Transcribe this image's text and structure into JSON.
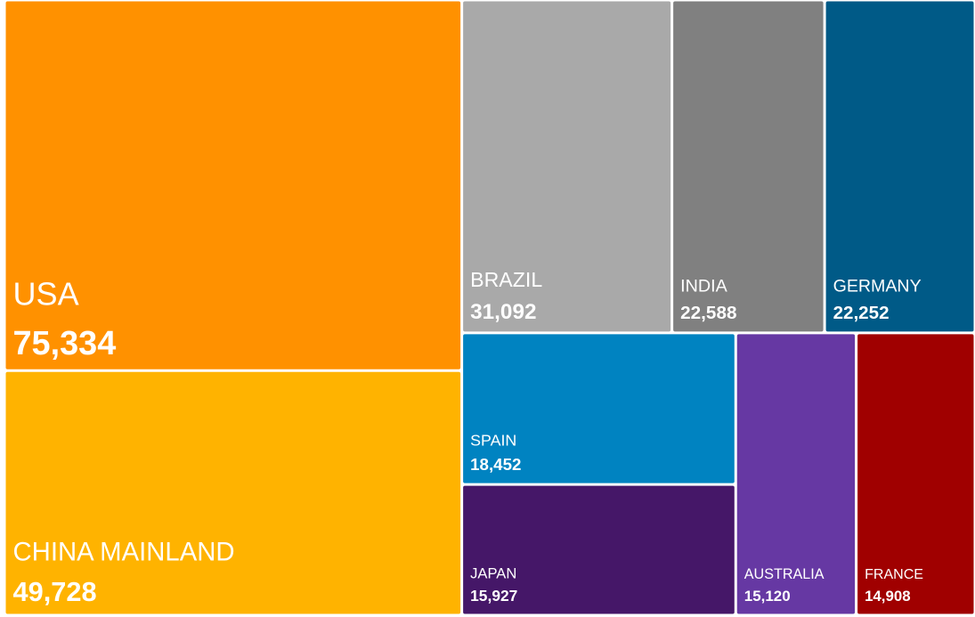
{
  "chart_data": {
    "type": "treemap",
    "categories": [
      "USA",
      "CHINA MAINLAND",
      "BRAZIL",
      "INDIA",
      "GERMANY",
      "SPAIN",
      "JAPAN",
      "AUSTRALIA",
      "FRANCE"
    ],
    "values": [
      75334,
      49728,
      31092,
      22588,
      22252,
      18452,
      15927,
      15120,
      14908
    ],
    "value_labels": [
      "75,334",
      "49,728",
      "31,092",
      "22,588",
      "22,252",
      "18,452",
      "15,927",
      "15,120",
      "14,908"
    ],
    "colors": [
      "#ff9100",
      "#ffb300",
      "#a9a9a9",
      "#808080",
      "#005a87",
      "#0083c1",
      "#451768",
      "#6638a3",
      "#a00000"
    ]
  }
}
